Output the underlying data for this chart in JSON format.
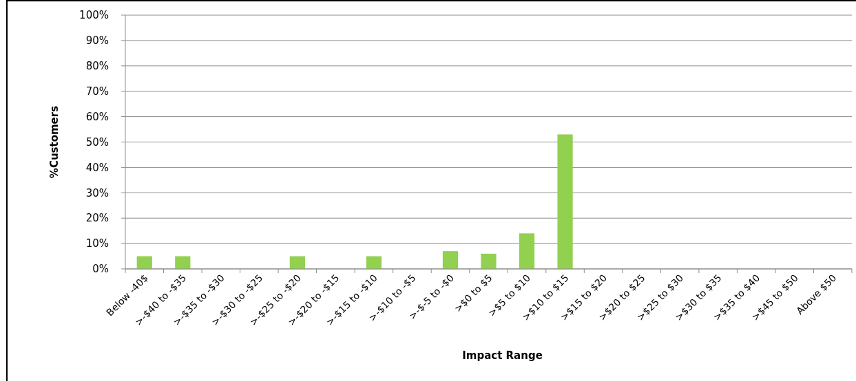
{
  "chart_data": {
    "type": "bar",
    "xlabel": "Impact Range",
    "ylabel": "%Customers",
    "categories": [
      "Below -40$",
      ">-$40 to -$35",
      ">-$35 to -$30",
      ">-$30 to -$25",
      ">-$25 to -$20",
      ">-$20 to -$15",
      ">-$15 to -$10",
      ">-$10 to -$5",
      ">-$-5 to -$0",
      ">$0 to $5",
      ">$5 to $10",
      ">$10 to $15",
      ">$15 to $20",
      ">$20 to $25",
      ">$25 to $30",
      ">$30 to $35",
      ">$35 to $40",
      ">$45 to $50",
      "Above $50"
    ],
    "values": [
      5,
      5,
      0,
      0,
      5,
      0,
      5,
      0,
      7,
      6,
      14,
      53,
      0,
      0,
      0,
      0,
      0,
      0,
      0
    ],
    "color": "#92d050",
    "ylim": [
      0,
      100
    ],
    "yticks": [
      {
        "value": 0,
        "label": "0%"
      },
      {
        "value": 10,
        "label": "10%"
      },
      {
        "value": 20,
        "label": "20%"
      },
      {
        "value": 30,
        "label": "30%"
      },
      {
        "value": 40,
        "label": "40%"
      },
      {
        "value": 50,
        "label": "50%"
      },
      {
        "value": 60,
        "label": "60%"
      },
      {
        "value": 70,
        "label": "70%"
      },
      {
        "value": 80,
        "label": "80%"
      },
      {
        "value": 90,
        "label": "90%"
      },
      {
        "value": 100,
        "label": "100%"
      }
    ],
    "grid": "y"
  }
}
